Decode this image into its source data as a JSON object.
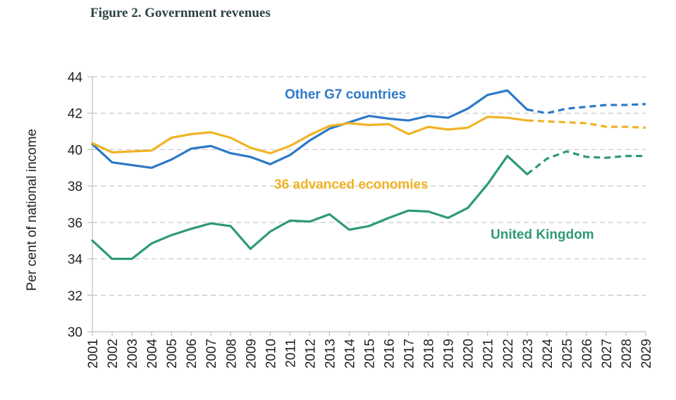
{
  "figure_title": "Figure 2. Government revenues",
  "chart_data": {
    "type": "line",
    "title": "Figure 2. Government revenues",
    "xlabel": "",
    "ylabel": "Per cent of national income",
    "ylim": [
      30,
      44
    ],
    "yticks": [
      30,
      32,
      34,
      36,
      38,
      40,
      42,
      44
    ],
    "x": [
      2001,
      2002,
      2003,
      2004,
      2005,
      2006,
      2007,
      2008,
      2009,
      2010,
      2011,
      2012,
      2013,
      2014,
      2015,
      2016,
      2017,
      2018,
      2019,
      2020,
      2021,
      2022,
      2023,
      2024,
      2025,
      2026,
      2027,
      2028,
      2029
    ],
    "xtick_labels": [
      "2001",
      "2002",
      "2003",
      "2004",
      "2005",
      "2006",
      "2007",
      "2008",
      "2009",
      "2010",
      "2011",
      "2012",
      "2013",
      "2014",
      "2015",
      "2016",
      "2017",
      "2018",
      "2019",
      "2020",
      "2021",
      "2022",
      "2023",
      "2024",
      "2025",
      "2026",
      "2027",
      "2028",
      "2029"
    ],
    "forecast_start": 2023,
    "grid": "horizontal dashed",
    "legend": "inline labels",
    "series": [
      {
        "name": "Other G7 countries",
        "color": "#2e78c7",
        "values": [
          40.3,
          39.3,
          39.15,
          39.0,
          39.45,
          40.05,
          40.2,
          39.8,
          39.6,
          39.2,
          39.7,
          40.5,
          41.15,
          41.5,
          41.85,
          41.7,
          41.6,
          41.85,
          41.75,
          42.25,
          43.0,
          43.25,
          42.2,
          42.0,
          42.25,
          42.35,
          42.45,
          42.45,
          42.5
        ]
      },
      {
        "name": "36 advanced economies",
        "color": "#f0b323",
        "values": [
          40.35,
          39.85,
          39.9,
          39.95,
          40.65,
          40.85,
          40.95,
          40.65,
          40.1,
          39.8,
          40.2,
          40.8,
          41.3,
          41.45,
          41.35,
          41.4,
          40.85,
          41.25,
          41.1,
          41.2,
          41.8,
          41.75,
          41.6,
          41.55,
          41.5,
          41.45,
          41.25,
          41.25,
          41.2
        ]
      },
      {
        "name": "United Kingdom",
        "color": "#2e9a74",
        "values": [
          35.0,
          34.0,
          34.0,
          34.85,
          35.3,
          35.65,
          35.95,
          35.8,
          34.55,
          35.5,
          36.1,
          36.05,
          36.45,
          35.6,
          35.8,
          36.25,
          36.65,
          36.6,
          36.25,
          36.8,
          38.1,
          39.65,
          38.65,
          39.5,
          39.9,
          39.6,
          39.55,
          39.65,
          39.65
        ]
      }
    ]
  }
}
